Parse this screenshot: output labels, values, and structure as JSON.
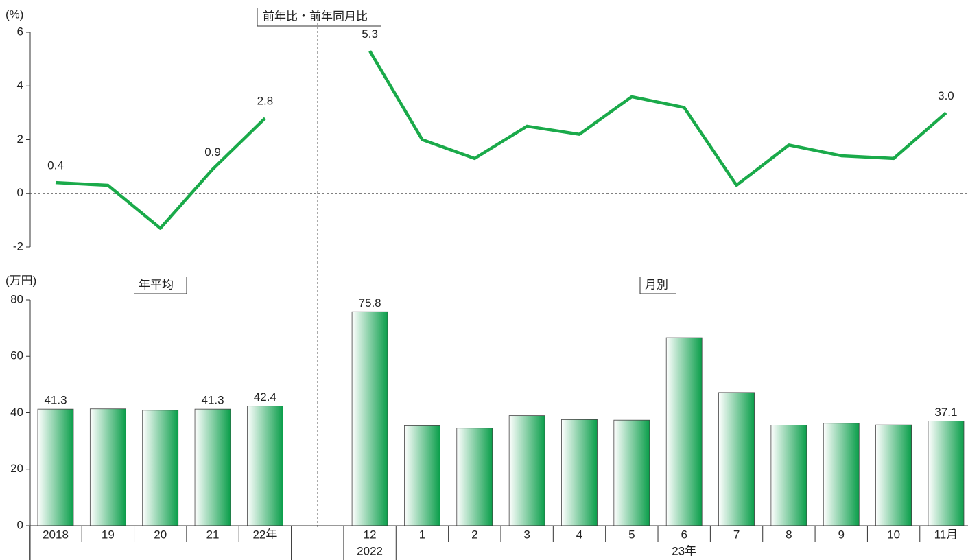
{
  "chart_data": [
    {
      "type": "line",
      "title": "前年比・前年同月比",
      "ylabel": "(%)",
      "color": "#1aaa4a",
      "categories": [
        "2018",
        "19",
        "20",
        "21",
        "22年",
        null,
        "12",
        "1",
        "2",
        "3",
        "4",
        "5",
        "6",
        "7",
        "8",
        "9",
        "10",
        "11月"
      ],
      "values": [
        0.4,
        0.3,
        -1.3,
        0.9,
        2.8,
        null,
        5.3,
        2.0,
        1.3,
        2.5,
        2.2,
        3.6,
        3.2,
        0.3,
        1.8,
        1.4,
        1.3,
        3.0
      ],
      "value_labels": [
        "0.4",
        null,
        null,
        "0.9",
        "2.8",
        null,
        "5.3",
        null,
        null,
        null,
        null,
        null,
        null,
        null,
        null,
        null,
        null,
        "3.0"
      ],
      "ylim": [
        -2,
        6
      ],
      "yticks": [
        -2,
        0,
        2,
        4,
        6
      ]
    },
    {
      "type": "bar",
      "ylabel": "(万円)",
      "panel_labels": [
        "年平均",
        "月別"
      ],
      "group_labels": [
        "2022",
        "23年"
      ],
      "color": "#0a9e4a",
      "categories": [
        "2018",
        "19",
        "20",
        "21",
        "22年",
        null,
        "12",
        "1",
        "2",
        "3",
        "4",
        "5",
        "6",
        "7",
        "8",
        "9",
        "10",
        "11月"
      ],
      "values": [
        41.3,
        41.4,
        40.9,
        41.3,
        42.4,
        null,
        75.8,
        35.4,
        34.6,
        39.0,
        37.6,
        37.4,
        66.6,
        47.2,
        35.6,
        36.3,
        35.7,
        37.1
      ],
      "value_labels": [
        "41.3",
        null,
        null,
        "41.3",
        "42.4",
        null,
        "75.8",
        null,
        null,
        null,
        null,
        null,
        null,
        null,
        null,
        null,
        null,
        "37.1"
      ],
      "ylim": [
        0,
        80
      ],
      "yticks": [
        0,
        20,
        40,
        60,
        80
      ]
    }
  ]
}
